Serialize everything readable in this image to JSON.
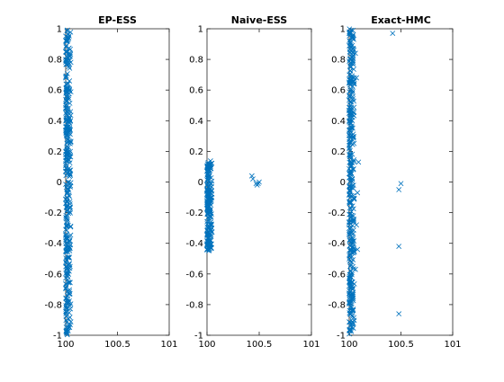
{
  "chart_data": [
    {
      "type": "scatter",
      "title": "EP-ESS",
      "xlim": [
        100,
        101
      ],
      "ylim": [
        -1,
        1
      ],
      "xticks": [
        "100",
        "100.5",
        "101"
      ],
      "yticks": [
        "-1",
        "-0.8",
        "-0.6",
        "-0.4",
        "-0.2",
        "0",
        "0.2",
        "0.4",
        "0.6",
        "0.8",
        "1"
      ],
      "marker": "x",
      "color": "#0072BD",
      "series": [
        {
          "description": "dense vertical band of samples hugging x = 100 across the full y range",
          "x_range": [
            100.0,
            100.05
          ],
          "y_range": [
            -1.0,
            1.0
          ],
          "points": []
        }
      ]
    },
    {
      "type": "scatter",
      "title": "Naive-ESS",
      "xlim": [
        100,
        101
      ],
      "ylim": [
        -1,
        1
      ],
      "xticks": [
        "100",
        "100.5",
        "101"
      ],
      "yticks": [
        "-1",
        "-0.8",
        "-0.6",
        "-0.4",
        "-0.2",
        "0",
        "0.2",
        "0.4",
        "0.6",
        "0.8",
        "1"
      ],
      "marker": "x",
      "color": "#0072BD",
      "series": [
        {
          "description": "dense band near x = 100 between y = -0.45 and y = 0.14",
          "x_range": [
            100.0,
            100.05
          ],
          "y_range": [
            -0.45,
            0.14
          ],
          "points": [
            [
              100.43,
              0.04
            ],
            [
              100.44,
              0.02
            ],
            [
              100.47,
              -0.01
            ],
            [
              100.48,
              -0.02
            ],
            [
              100.49,
              -0.01
            ],
            [
              100.5,
              0.0
            ]
          ]
        }
      ]
    },
    {
      "type": "scatter",
      "title": "Exact-HMC",
      "xlim": [
        100,
        101
      ],
      "ylim": [
        -1,
        1
      ],
      "xticks": [
        "100",
        "100.5",
        "101"
      ],
      "yticks": [
        "-1",
        "-0.8",
        "-0.6",
        "-0.4",
        "-0.2",
        "0",
        "0.2",
        "0.4",
        "0.6",
        "0.8",
        "1"
      ],
      "marker": "x",
      "color": "#0072BD",
      "series": [
        {
          "description": "dense band near x = 100 across the full y range with sparse outliers",
          "x_range": [
            100.0,
            100.05
          ],
          "y_range": [
            -1.0,
            1.0
          ],
          "points": [
            [
              100.42,
              0.97
            ],
            [
              100.48,
              -0.05
            ],
            [
              100.5,
              -0.01
            ],
            [
              100.48,
              -0.42
            ],
            [
              100.48,
              -0.86
            ],
            [
              100.06,
              0.84
            ],
            [
              100.07,
              0.68
            ],
            [
              100.09,
              0.13
            ],
            [
              100.08,
              -0.07
            ],
            [
              100.07,
              -0.28
            ],
            [
              100.08,
              -0.44
            ],
            [
              100.06,
              -0.57
            ]
          ]
        }
      ]
    }
  ]
}
